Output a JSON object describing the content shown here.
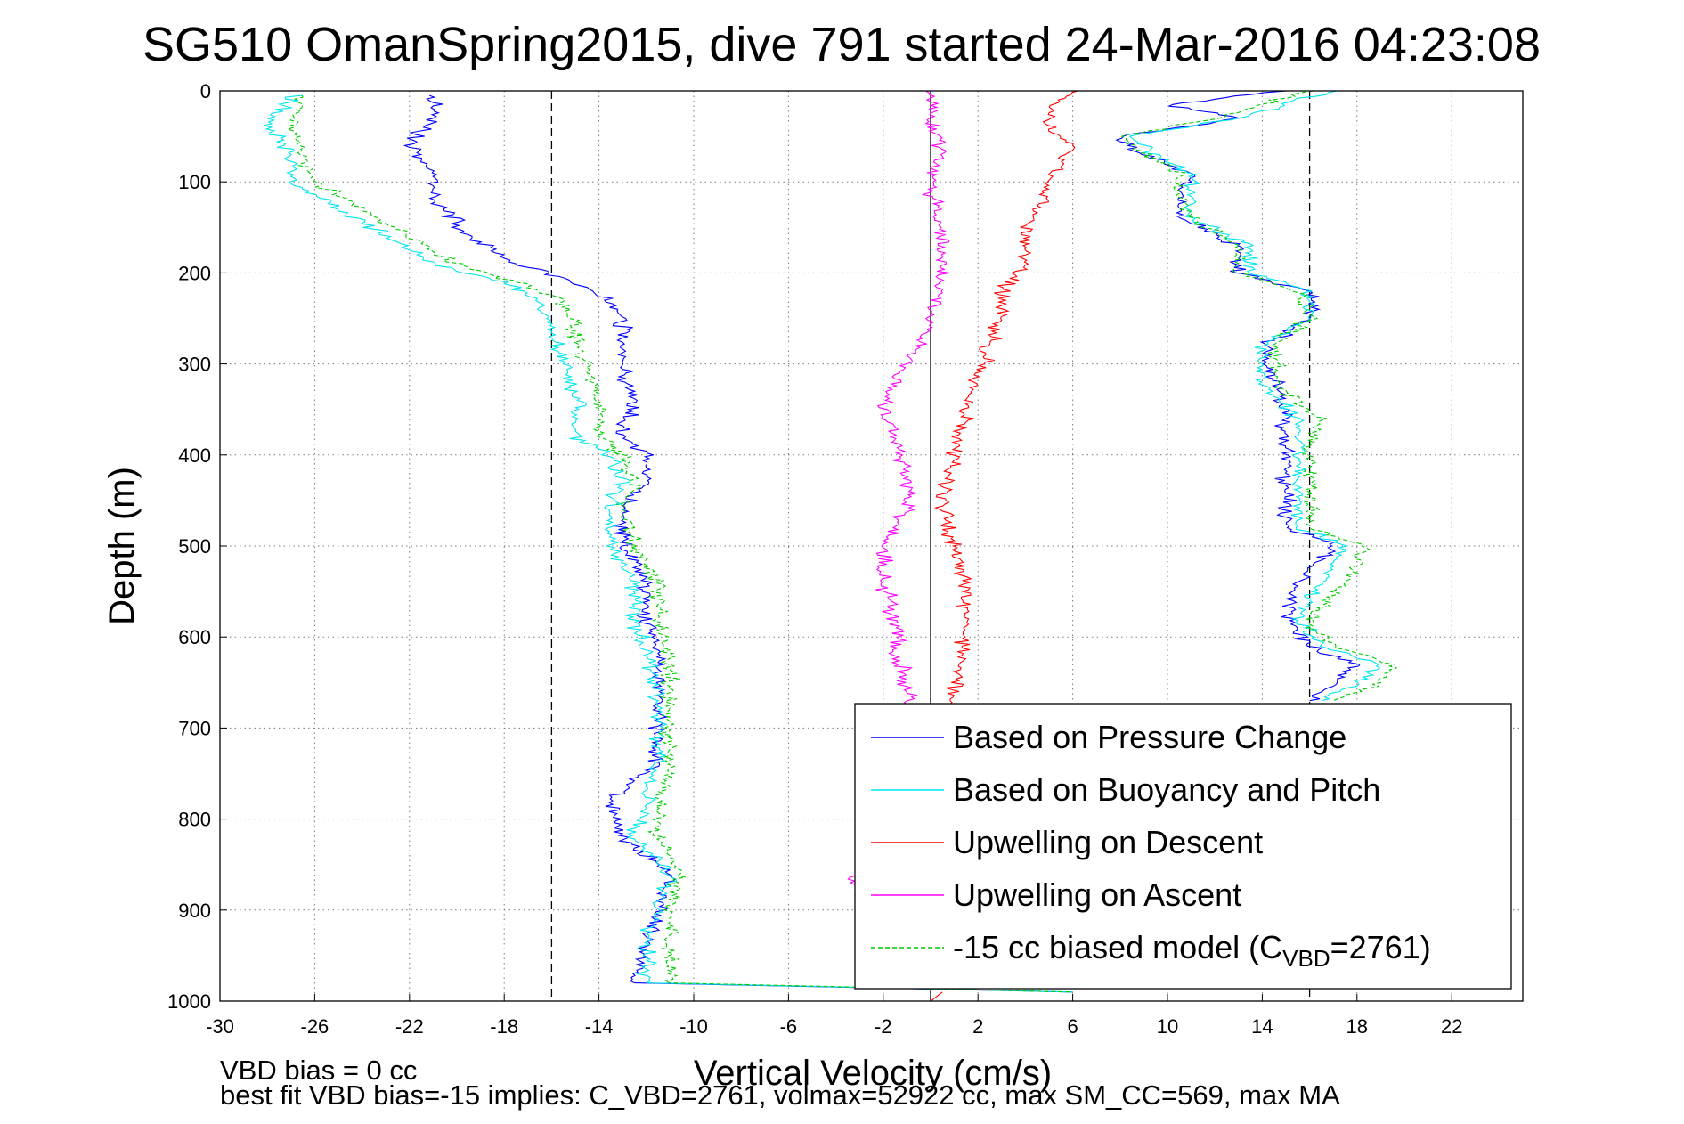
{
  "chart_data": {
    "type": "line",
    "title": "SG510 OmanSpring2015, dive 791 started 24-Mar-2016 04:23:08",
    "xlabel": "Vertical Velocity (cm/s)",
    "ylabel": "Depth (m)",
    "xlim": [
      -30,
      25
    ],
    "ylim": [
      0,
      1000
    ],
    "y_reversed": true,
    "grid": true,
    "x_ticks": [
      -30,
      -26,
      -22,
      -18,
      -14,
      -10,
      -6,
      -2,
      2,
      6,
      10,
      14,
      18,
      22
    ],
    "x_tick_labels": [
      "-30",
      "-26",
      "-22",
      "-18",
      "-14",
      "-10",
      "-6",
      "-2",
      "2",
      "6",
      "10",
      "14",
      "18",
      "22"
    ],
    "y_ticks": [
      0,
      100,
      200,
      300,
      400,
      500,
      600,
      700,
      800,
      900,
      1000
    ],
    "y_tick_labels": [
      "0",
      "100",
      "200",
      "300",
      "400",
      "500",
      "600",
      "700",
      "800",
      "900",
      "1000"
    ],
    "reference_lines": [
      {
        "x": -16,
        "style": "dashed",
        "color": "#000000"
      },
      {
        "x": 0,
        "style": "solid",
        "color": "#000000"
      },
      {
        "x": 16,
        "style": "dashed",
        "color": "#000000"
      }
    ],
    "legend_position": "bottom-right",
    "series": [
      {
        "name": "Based on Pressure Change",
        "color": "#0000ff",
        "style": "solid",
        "segments": [
          {
            "depth": [
              5,
              30,
              60,
              90,
              120,
              160,
              190,
              210,
              230,
              260,
              300,
              340,
              380,
              400,
              430,
              460,
              500,
              540,
              580,
              620,
              660,
              700,
              740,
              780,
              820,
              860,
              900,
              940,
              980,
              990
            ],
            "velocity": [
              -21,
              -21,
              -22,
              -21,
              -21,
              -19.5,
              -17.5,
              -15,
              -13.5,
              -13,
              -13,
              -12.5,
              -13,
              -12,
              -12,
              -13,
              -13,
              -12,
              -12,
              -11.5,
              -11.5,
              -11.5,
              -11.5,
              -13.5,
              -13,
              -11,
              -11.5,
              -12,
              -12.5,
              6
            ]
          },
          {
            "depth": [
              0,
              15,
              30,
              50,
              70,
              90,
              110,
              140,
              170,
              200,
              220,
              250,
              280,
              320,
              360,
              400,
              440,
              480,
              500,
              540,
              580,
              610,
              630,
              650,
              670
            ],
            "velocity": [
              15,
              10,
              13,
              8,
              9,
              11,
              10.5,
              10.5,
              13,
              13,
              16,
              16,
              14,
              14.5,
              15,
              15,
              15,
              15,
              17,
              15.5,
              15,
              16,
              18,
              17,
              16
            ]
          }
        ]
      },
      {
        "name": "Based on Buoyancy and Pitch",
        "color": "#00e5ee",
        "style": "solid",
        "segments": [
          {
            "depth": [
              5,
              40,
              70,
              100,
              130,
              160,
              190,
              210,
              230,
              260,
              300,
              340,
              380,
              400,
              430,
              460,
              500,
              540,
              580,
              620,
              660,
              700,
              740,
              780,
              820,
              860,
              900,
              940,
              980,
              990
            ],
            "velocity": [
              -27,
              -28,
              -27,
              -27,
              -25,
              -23,
              -21,
              -18,
              -16.5,
              -16,
              -15.5,
              -15,
              -15,
              -13.5,
              -13,
              -13.5,
              -13.5,
              -12.5,
              -12.5,
              -12,
              -11.5,
              -11.5,
              -11.5,
              -12,
              -12.5,
              -11,
              -11.5,
              -12,
              -12,
              6
            ]
          },
          {
            "depth": [
              0,
              30,
              50,
              70,
              90,
              110,
              140,
              170,
              200,
              220,
              250,
              280,
              320,
              360,
              400,
              440,
              480,
              500,
              540,
              580,
              610,
              630,
              650,
              670
            ],
            "velocity": [
              17,
              13,
              8.5,
              9.5,
              11,
              11,
              11,
              13.5,
              13.5,
              16,
              16,
              14,
              14,
              15.5,
              15.5,
              15.5,
              15.5,
              17.5,
              16.5,
              15.5,
              16.5,
              19,
              18,
              16.5
            ]
          }
        ]
      },
      {
        "name": "Upwelling on Descent",
        "color": "#ff0000",
        "style": "solid",
        "segments": [
          {
            "depth": [
              0,
              20,
              40,
              60,
              80,
              100,
              130,
              160,
              190,
              220,
              250,
              280,
              310,
              350,
              400,
              450,
              500,
              550,
              600,
              650,
              680
            ],
            "velocity": [
              6,
              5,
              5,
              6,
              5.5,
              5,
              4.5,
              4,
              4,
              3,
              3,
              2.5,
              2,
              1.5,
              1,
              0.5,
              1,
              1.5,
              1.5,
              1,
              1
            ]
          },
          {
            "depth": [
              990,
              1000
            ],
            "velocity": [
              0.5,
              0
            ]
          }
        ]
      },
      {
        "name": "Upwelling on Ascent",
        "color": "#ff00ff",
        "style": "solid",
        "segments": [
          {
            "depth": [
              0,
              30,
              60,
              100,
              150,
              200,
              250,
              300,
              340,
              380,
              420,
              460,
              500,
              540,
              580,
              620,
              660,
              680
            ],
            "velocity": [
              0,
              0,
              0.5,
              0,
              0.5,
              0.5,
              0,
              -1,
              -2,
              -1.5,
              -1,
              -1,
              -2,
              -2,
              -1.5,
              -1.5,
              -1,
              -1
            ]
          },
          {
            "depth": [
              860,
              880,
              900
            ],
            "velocity": [
              -3.5,
              -3,
              -3
            ]
          }
        ]
      },
      {
        "name": "-15 cc biased model (C",
        "name_subscript": "VBD",
        "name_suffix": "=2761)",
        "color": "#00cc00",
        "style": "dashed",
        "segments": [
          {
            "depth": [
              5,
              40,
              70,
              100,
              130,
              160,
              190,
              210,
              230,
              260,
              300,
              340,
              380,
              400,
              430,
              460,
              500,
              540,
              580,
              620,
              660,
              700,
              740,
              780,
              820,
              860,
              900,
              940,
              980,
              990
            ],
            "velocity": [
              -26.5,
              -27,
              -26.5,
              -26,
              -24,
              -22,
              -20,
              -17.5,
              -15.5,
              -15,
              -14.5,
              -14,
              -14,
              -13,
              -12.5,
              -13,
              -12.5,
              -11.5,
              -11.5,
              -11,
              -11,
              -11,
              -11,
              -11.5,
              -11.5,
              -10.5,
              -11,
              -11,
              -11,
              6
            ]
          },
          {
            "depth": [
              0,
              30,
              50,
              70,
              90,
              110,
              140,
              170,
              200,
              220,
              250,
              280,
              320,
              360,
              400,
              440,
              480,
              500,
              540,
              580,
              610,
              630,
              650,
              670
            ],
            "velocity": [
              16,
              12,
              8,
              9,
              10.5,
              10.5,
              11,
              13,
              13,
              15.5,
              16,
              14.5,
              14.5,
              16.5,
              16,
              16,
              16,
              18.5,
              17.5,
              16,
              17,
              19.5,
              19,
              17
            ]
          }
        ]
      }
    ],
    "annotations": [
      "VBD bias = 0 cc",
      "best fit VBD bias=-15 implies: C_VBD=2761, volmax=52922 cc, max SM_CC=569, max MA"
    ]
  }
}
